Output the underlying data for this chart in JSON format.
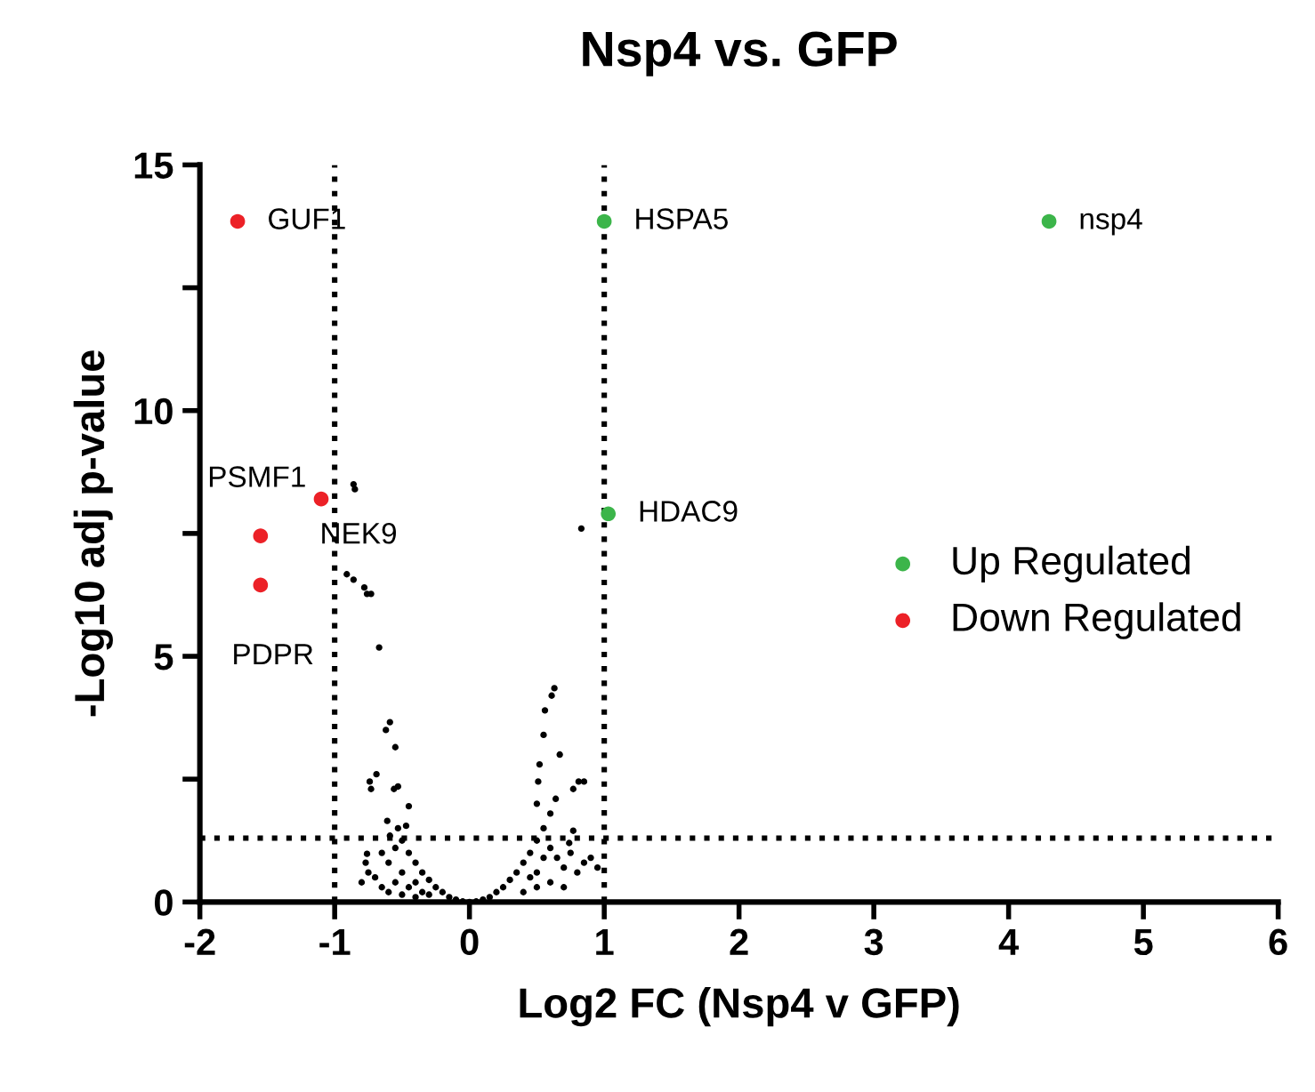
{
  "chart_data": {
    "type": "scatter",
    "title": "Nsp4 vs. GFP",
    "xlabel": "Log2 FC (Nsp4 v GFP)",
    "ylabel": "-Log10 adj p-value",
    "xlim": [
      -2,
      6
    ],
    "xticks": [
      -2,
      -1,
      0,
      1,
      2,
      3,
      4,
      5,
      6
    ],
    "ylim": [
      0,
      15
    ],
    "yticks": [
      0,
      {
        "value": 2.5,
        "label": null
      },
      5,
      {
        "value": 7.5,
        "label": null
      },
      10,
      {
        "value": 12.5,
        "label": null
      },
      15
    ],
    "grid": false,
    "legend": "right",
    "marker": "circle",
    "series": [
      {
        "color": "#000000",
        "x": [
          -0.86,
          -0.85,
          -0.91,
          -0.86,
          -0.78,
          -0.73,
          -0.76,
          -0.67,
          0.83,
          0.63,
          0.61,
          0.56,
          0.55,
          0.67,
          0.52,
          0.51,
          0.85,
          0.81,
          0.77,
          0.64,
          0.77,
          0.74,
          0.5,
          -0.59,
          -0.62,
          -0.55,
          -0.74,
          -0.69,
          -0.73,
          -0.56,
          -0.53,
          -0.45,
          -0.61,
          -0.59,
          -0.76,
          -0.77,
          -0.6,
          -0.55,
          -0.5,
          -0.45,
          -0.4,
          -0.35,
          -0.3,
          -0.25,
          -0.2,
          -0.15,
          -0.1,
          -0.05,
          0,
          -0.7,
          -0.65,
          -0.55,
          -0.5,
          -0.45,
          -0.4,
          -0.35,
          -0.3,
          -0.6,
          -0.5,
          -0.4,
          -0.8,
          -0.75,
          -0.65,
          -0.53,
          -0.47,
          0.05,
          0.1,
          0.15,
          0.2,
          0.25,
          0.3,
          0.35,
          0.4,
          0.45,
          0.5,
          0.55,
          0.6,
          0.5,
          0.55,
          0.6,
          0.65,
          0.7,
          0.75,
          0.8,
          0.85,
          0.6,
          0.7,
          0.5,
          0.4,
          0.45,
          0.9,
          0.95
        ],
        "values": [
          8.5,
          8.4,
          6.67,
          6.56,
          6.4,
          6.27,
          6.27,
          5.18,
          7.6,
          4.35,
          4.2,
          3.9,
          3.4,
          3.0,
          2.8,
          2.45,
          2.45,
          2.45,
          2.3,
          2.1,
          1.45,
          1.2,
          2.0,
          3.66,
          3.5,
          3.15,
          2.45,
          2.6,
          2.3,
          2.3,
          2.35,
          1.95,
          1.65,
          1.35,
          0.98,
          0.8,
          0.8,
          1.1,
          1.25,
          1.0,
          0.8,
          0.6,
          0.45,
          0.3,
          0.2,
          0.1,
          0.05,
          0.01,
          0,
          0.5,
          0.3,
          0.4,
          0.6,
          0.3,
          0.4,
          0.2,
          0.15,
          0.2,
          0.15,
          0.1,
          0.4,
          0.6,
          1.0,
          1.5,
          1.55,
          0.01,
          0.05,
          0.1,
          0.2,
          0.3,
          0.45,
          0.6,
          0.8,
          1.0,
          1.25,
          1.5,
          1.8,
          0.6,
          0.9,
          1.1,
          0.9,
          0.7,
          1.0,
          0.6,
          0.8,
          0.4,
          0.3,
          0.3,
          0.2,
          0.5,
          0.9,
          0.7
        ]
      },
      {
        "name": "Up Regulated",
        "color": "#3cb54a",
        "x": [
          1.0,
          4.3,
          1.03
        ],
        "values": [
          13.85,
          13.85,
          7.9
        ]
      },
      {
        "name": "Down Regulated",
        "color": "#ec2127",
        "x": [
          -1.72,
          -1.1,
          -1.55,
          -1.55
        ],
        "values": [
          13.85,
          8.2,
          7.45,
          6.45
        ]
      }
    ],
    "ref_lines": [
      {
        "axis": "x",
        "value": -1,
        "color": "#000000",
        "line_style": "dotted"
      },
      {
        "axis": "x",
        "value": 1,
        "color": "#000000",
        "line_style": "dotted"
      },
      {
        "axis": "y",
        "value": 1.3,
        "color": "#000000",
        "line_style": "dotted"
      }
    ],
    "annotations": [
      {
        "text": "GUF1",
        "x": -1.72,
        "y": 13.85
      },
      {
        "text": "HSPA5",
        "x": 1.0,
        "y": 13.85
      },
      {
        "text": "nsp4",
        "x": 4.3,
        "y": 13.85
      },
      {
        "text": "PSMF1",
        "x": -1.1,
        "y": 8.2
      },
      {
        "text": "NEK9",
        "x": -1.55,
        "y": 7.45
      },
      {
        "text": "PDPR",
        "x": -1.55,
        "y": 6.45
      },
      {
        "text": "HDAC9",
        "x": 1.03,
        "y": 7.9
      }
    ]
  }
}
